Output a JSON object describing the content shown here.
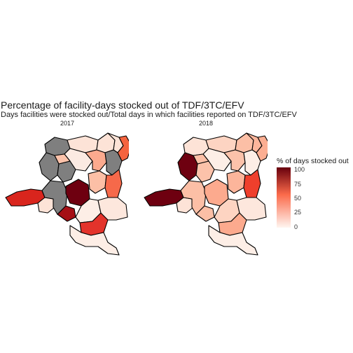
{
  "title": "Percentage of facility-days stocked out of TDF/3TC/EFV",
  "subtitle": "Days facilities were stocked out/Total days in which facilities reported on TDF/3TC/EFV",
  "panels": [
    {
      "label": "2017",
      "regions": {
        "north-west": "na",
        "north-1": "#fde3d7",
        "north-2": "#fde3d7",
        "north-3": "#fde3d7",
        "north-east": "#f5643f",
        "west-1": "na",
        "west-2": "na",
        "centre-north": "#fbeae2",
        "centre-1": "#fcaa8e",
        "centre-2": "#fcc2aa",
        "east-1": "na",
        "kongo-central": "#d9251d",
        "kinshasa": "#fde3d7",
        "kwilu": "na",
        "kasai": "#6e0010",
        "kasai-central": "#a50f15",
        "east-2": "#fcbfa6",
        "east-3": "#f6694a",
        "south-west": "#fdeee6",
        "south-1": "#e3332b",
        "south-2": "#fde7dd",
        "south-3": "#fdeee6"
      }
    },
    {
      "label": "2018",
      "regions": {
        "north-west": "#fde3d7",
        "north-1": "#fdd4c2",
        "north-2": "#fcbfa6",
        "north-3": "#fcb59b",
        "north-east": "#fcae92",
        "west-1": "#6e0010",
        "west-2": "#fcc2aa",
        "centre-north": "#fdeee6",
        "centre-1": "#fcc2aa",
        "centre-2": "#fcbfa6",
        "east-1": "#fdeee6",
        "kongo-central": "#6e0010",
        "kinshasa": "#fde3d7",
        "kwilu": "#fcbfa6",
        "kasai": "#fcaa8e",
        "kasai-central": "#fcbfa6",
        "east-2": "#fcb59b",
        "east-3": "#ef3f2c",
        "south-west": "#fdd4c2",
        "south-1": "#fcaa8e",
        "south-2": "#fde7dd",
        "south-3": "#fdeee6"
      }
    }
  ],
  "legend": {
    "title": "% of days stocked out",
    "ticks": [
      "100",
      "75",
      "50",
      "25",
      "0"
    ],
    "scale": [
      0,
      100
    ],
    "colors": {
      "low": "#fff5f0",
      "mid": "#fb6a4a",
      "high": "#67000d",
      "na": "#7f7f7f"
    }
  }
}
